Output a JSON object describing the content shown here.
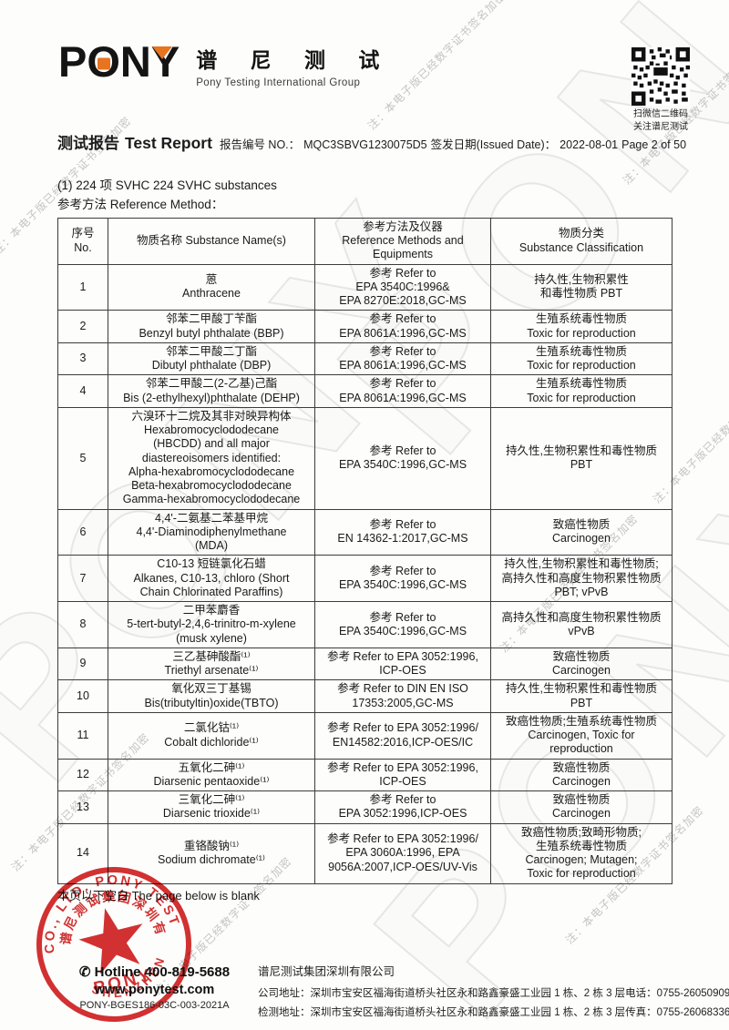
{
  "watermark": {
    "note": "注：本电子版已经数字证书签名加密",
    "big": "PONY"
  },
  "header": {
    "logo_p": "P",
    "logo_o": "O",
    "logo_n": "N",
    "logo_y": "Y",
    "logo_cn": "谱 尼 测 试",
    "logo_sub": "Pony Testing International Group",
    "qr_caption_1": "扫微信二维码",
    "qr_caption_2": "关注谱尼测试"
  },
  "title": {
    "report_title_cn": "测试报告",
    "report_title_en": "Test Report",
    "report_no_label": "报告编号 NO.：",
    "report_no": "MQC3SBVG1230075D5",
    "issue_label": "签发日期(Issued Date)：",
    "issue_date": "2022-08-01",
    "page": "Page 2 of 50"
  },
  "section": {
    "heading": "(1) 224 项 SVHC 224 SVHC substances",
    "subheading": "参考方法 Reference Method："
  },
  "table": {
    "headers": [
      [
        "序号",
        "No."
      ],
      [
        "物质名称 Substance Name(s)"
      ],
      [
        "参考方法及仪器",
        "Reference Methods and",
        "Equipments"
      ],
      [
        "物质分类",
        "Substance Classification"
      ]
    ],
    "rows": [
      {
        "no": "1",
        "name": [
          "蒽",
          "Anthracene"
        ],
        "method": [
          "参考 Refer to",
          "EPA 3540C:1996&",
          "EPA 8270E:2018,GC-MS"
        ],
        "cls": [
          "持久性,生物积累性",
          "和毒性物质 PBT"
        ]
      },
      {
        "no": "2",
        "name": [
          "邻苯二甲酸丁苄酯",
          "Benzyl butyl phthalate (BBP)"
        ],
        "method": [
          "参考 Refer to",
          "EPA 8061A:1996,GC-MS"
        ],
        "cls": [
          "生殖系统毒性物质",
          "Toxic for reproduction"
        ]
      },
      {
        "no": "3",
        "name": [
          "邻苯二甲酸二丁酯",
          "Dibutyl phthalate (DBP)"
        ],
        "method": [
          "参考 Refer to",
          "EPA 8061A:1996,GC-MS"
        ],
        "cls": [
          "生殖系统毒性物质",
          "Toxic for reproduction"
        ]
      },
      {
        "no": "4",
        "name": [
          "邻苯二甲酸二(2-乙基)己酯",
          "Bis (2-ethylhexyl)phthalate (DEHP)"
        ],
        "method": [
          "参考 Refer to",
          "EPA 8061A:1996,GC-MS"
        ],
        "cls": [
          "生殖系统毒性物质",
          "Toxic for reproduction"
        ]
      },
      {
        "no": "5",
        "name": [
          "六溴环十二烷及其非对映异构体",
          "Hexabromocyclododecane",
          "(HBCDD) and all major",
          "diastereoisomers identified:",
          "Alpha-hexabromocyclododecane",
          "Beta-hexabromocyclododecane",
          "Gamma-hexabromocyclododecane"
        ],
        "method": [
          "参考 Refer to",
          "EPA 3540C:1996,GC-MS"
        ],
        "cls": [
          "持久性,生物积累性和毒性物质",
          "PBT"
        ]
      },
      {
        "no": "6",
        "name": [
          "4,4'-二氨基二苯基甲烷",
          "4,4'-Diaminodiphenylmethane",
          "(MDA)"
        ],
        "method": [
          "参考 Refer to",
          "EN 14362-1:2017,GC-MS"
        ],
        "cls": [
          "致癌性物质",
          "Carcinogen"
        ]
      },
      {
        "no": "7",
        "name": [
          "C10-13 短链氯化石蜡",
          "Alkanes, C10-13, chloro (Short",
          "Chain Chlorinated Paraffins)"
        ],
        "method": [
          "参考 Refer to",
          "EPA 3540C:1996,GC-MS"
        ],
        "cls": [
          "持久性,生物积累性和毒性物质;",
          "高持久性和高度生物积累性物质",
          "PBT; vPvB"
        ]
      },
      {
        "no": "8",
        "name": [
          "二甲苯麝香",
          "5-tert-butyl-2,4,6-trinitro-m-xylene",
          "(musk xylene)"
        ],
        "method": [
          "参考 Refer to",
          "EPA 3540C:1996,GC-MS"
        ],
        "cls": [
          "高持久性和高度生物积累性物质",
          "vPvB"
        ]
      },
      {
        "no": "9",
        "name": [
          "三乙基砷酸酯⁽¹⁾",
          "Triethyl arsenate⁽¹⁾"
        ],
        "method": [
          "参考 Refer to EPA 3052:1996,",
          "ICP-OES"
        ],
        "cls": [
          "致癌性物质",
          "Carcinogen"
        ]
      },
      {
        "no": "10",
        "name": [
          "氧化双三丁基锡",
          "Bis(tributyltin)oxide(TBTO)"
        ],
        "method": [
          "参考 Refer to DIN EN ISO",
          "17353:2005,GC-MS"
        ],
        "cls": [
          "持久性,生物积累性和毒性物质",
          "PBT"
        ]
      },
      {
        "no": "11",
        "name": [
          "二氯化钴⁽¹⁾",
          "Cobalt dichloride⁽¹⁾"
        ],
        "method": [
          "参考 Refer to EPA 3052:1996/",
          "EN14582:2016,ICP-OES/IC"
        ],
        "cls": [
          "致癌性物质;生殖系统毒性物质",
          "Carcinogen, Toxic for",
          "reproduction"
        ]
      },
      {
        "no": "12",
        "name": [
          "五氧化二砷⁽¹⁾",
          "Diarsenic pentaoxide⁽¹⁾"
        ],
        "method": [
          "参考 Refer to EPA 3052:1996,",
          "ICP-OES"
        ],
        "cls": [
          "致癌性物质",
          "Carcinogen"
        ]
      },
      {
        "no": "13",
        "name": [
          "三氧化二砷⁽¹⁾",
          "Diarsenic trioxide⁽¹⁾"
        ],
        "method": [
          "参考 Refer to",
          "EPA 3052:1996,ICP-OES"
        ],
        "cls": [
          "致癌性物质",
          "Carcinogen"
        ]
      },
      {
        "no": "14",
        "name": [
          "重铬酸钠⁽¹⁾",
          "Sodium dichromate⁽¹⁾"
        ],
        "method": [
          "参考 Refer to EPA 3052:1996/",
          "EPA 3060A:1996, EPA",
          "9056A:2007,ICP-OES/UV-Vis"
        ],
        "cls": [
          "致癌性物质;致畸形物质;",
          "生殖系统毒性物质",
          "Carcinogen; Mutagen;",
          "Toxic for reproduction"
        ]
      }
    ]
  },
  "note_below_table": "本页以下空白 The page below is blank",
  "stamp": {
    "ring_text_en": "CO., LTD. PONY TESTING GROUP",
    "ring_text_cn": "谱尼测试集团深圳有限公司",
    "ring_text_bottom": "SHENZHEN",
    "center_text": "PONY"
  },
  "footer": {
    "phone_icon": "✆",
    "hotline": "Hotline 400-819-5688",
    "website": "www.ponytest.com",
    "doc_no": "PONY-BGES186-03C-003-2021A",
    "company_name": "谱尼测试集团深圳有限公司",
    "company_address": "公司地址：深圳市宝安区福海街道桥头社区永和路鑫豪盛工业园 1 栋、2 栋 3 层",
    "tel": "电话：0755-26050909",
    "test_address": "检测地址：深圳市宝安区福海街道桥头社区永和路鑫豪盛工业园 1 栋、2 栋 3 层",
    "fax": "传真：0755-26068336"
  }
}
